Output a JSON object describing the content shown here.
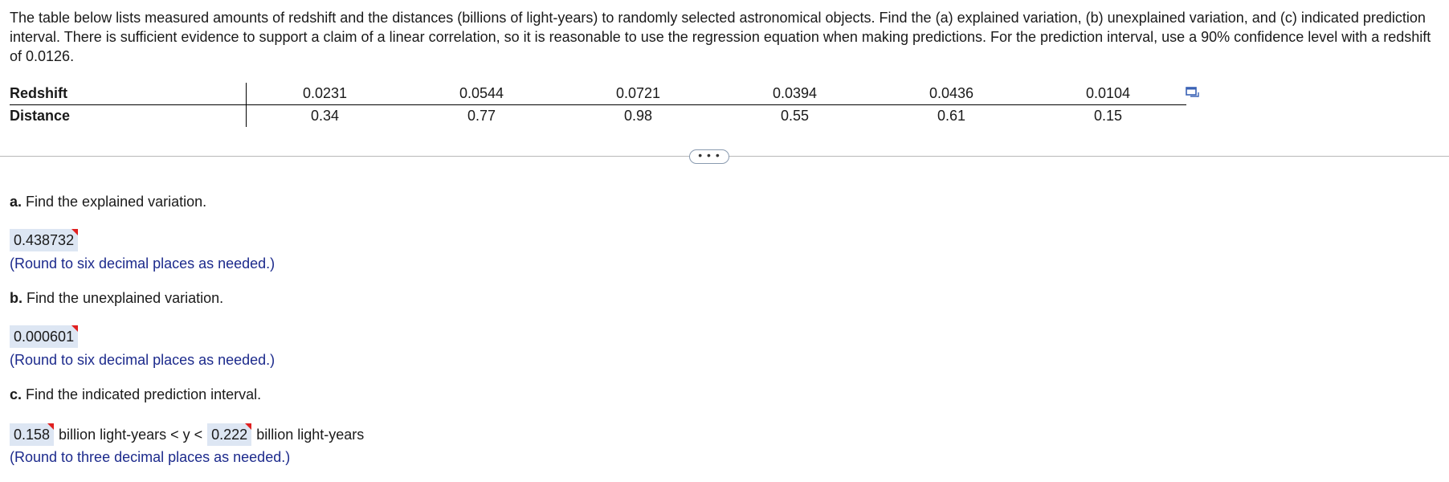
{
  "problem": {
    "text": "The table below lists measured amounts of redshift and the distances (billions of light-years) to randomly selected astronomical objects. Find the (a) explained variation, (b) unexplained variation, and (c) indicated prediction interval. There is sufficient evidence to support a claim of a linear correlation, so it is reasonable to use the regression equation when making predictions. For the prediction interval, use a 90% confidence level with a redshift of 0.0126."
  },
  "table": {
    "row_labels": [
      "Redshift",
      "Distance"
    ],
    "redshift": [
      "0.0231",
      "0.0544",
      "0.0721",
      "0.0394",
      "0.0436",
      "0.0104"
    ],
    "distance": [
      "0.34",
      "0.77",
      "0.98",
      "0.55",
      "0.61",
      "0.15"
    ]
  },
  "icons": {
    "copy": "copy-icon",
    "more": "more-options"
  },
  "more_button": {
    "label": "• • •"
  },
  "part_a": {
    "letter": "a.",
    "question": " Find the explained variation.",
    "answer": "0.438732",
    "hint": "(Round to six decimal places as needed.)"
  },
  "part_b": {
    "letter": "b.",
    "question": " Find the unexplained variation.",
    "answer": "0.000601",
    "hint": "(Round to six decimal places as needed.)"
  },
  "part_c": {
    "letter": "c.",
    "question": " Find the indicated prediction interval.",
    "lower": "0.158",
    "upper": "0.222",
    "middle_text": "billion light-years < y <",
    "end_text": "billion light-years",
    "hint": "(Round to three decimal places as needed.)"
  },
  "colors": {
    "answer_bg": "#dde6f3",
    "hint": "#1c2a8c",
    "flag": "#e02020"
  }
}
